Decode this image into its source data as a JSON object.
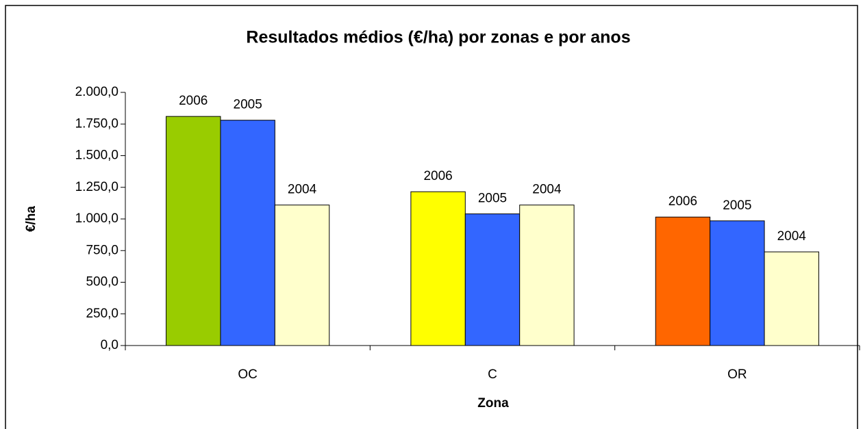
{
  "chart_data": {
    "type": "bar",
    "title": "Resultados médios (€/ha) por zonas e por anos",
    "xlabel": "Zona",
    "ylabel": "€/ha",
    "categories": [
      "OC",
      "C",
      "OR"
    ],
    "series": [
      {
        "name": "2006",
        "colors": [
          "#99cc00",
          "#ffff00",
          "#ff6600"
        ],
        "values": [
          1810,
          1215,
          1015
        ]
      },
      {
        "name": "2005",
        "color": "#3366ff",
        "values": [
          1780,
          1040,
          985
        ]
      },
      {
        "name": "2004",
        "color": "#ffffcc",
        "values": [
          1110,
          1110,
          740
        ]
      }
    ],
    "ylim": [
      0,
      2000
    ],
    "yticks": [
      {
        "value": 0,
        "label": "0,0"
      },
      {
        "value": 250,
        "label": "250,0"
      },
      {
        "value": 500,
        "label": "500,0"
      },
      {
        "value": 750,
        "label": "750,0"
      },
      {
        "value": 1000,
        "label": "1.000,0"
      },
      {
        "value": 1250,
        "label": "1.250,0"
      },
      {
        "value": 1500,
        "label": "1.500,0"
      },
      {
        "value": 1750,
        "label": "1.750,0"
      },
      {
        "value": 2000,
        "label": "2.000,0"
      }
    ]
  }
}
